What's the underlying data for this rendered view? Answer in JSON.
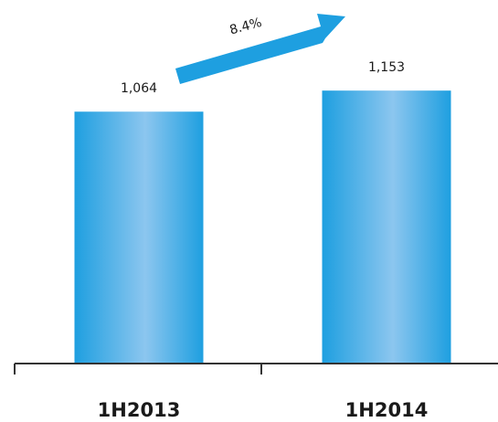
{
  "chart_data": {
    "type": "bar",
    "categories": [
      "1H2013",
      "1H2014"
    ],
    "values": [
      1064,
      1153
    ],
    "value_labels": [
      "1,064",
      "1,153"
    ],
    "growth_label": "8.4%",
    "ylim": [
      0,
      1200
    ],
    "grid": false,
    "bar_color": "#1e9fe0",
    "bar_highlight_color": "#8cc6ef",
    "arrow_color": "#1e9fe0",
    "axis_color": "#333333"
  }
}
